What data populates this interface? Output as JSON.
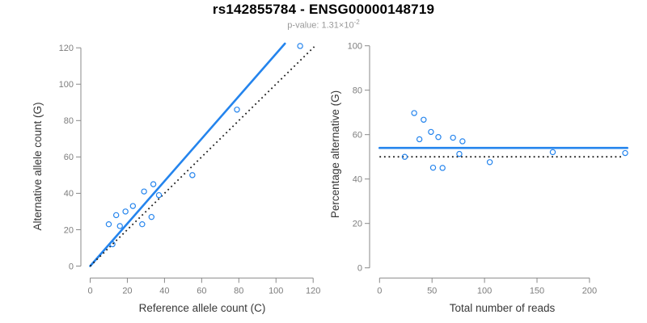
{
  "header": {
    "title": "rs142855784 - ENSG00000148719",
    "subtitle_prefix": "p-value: 1.31×10",
    "subtitle_exponent": "-2"
  },
  "colors": {
    "accent_blue": "#2484ed",
    "line_black": "#1b1b1b",
    "axis_gray": "#898989",
    "tick_label_gray": "#7d7d7d",
    "axis_title_color": "#383838",
    "subtitle_gray": "#999999",
    "title_black": "#000000"
  },
  "chart_data": [
    {
      "type": "scatter",
      "name": "allele-counts-scatter",
      "title": "",
      "xlabel": "Reference allele count (C)",
      "ylabel": "Alternative allele count (G)",
      "xlim": [
        0,
        126
      ],
      "ylim": [
        0,
        126
      ],
      "xticks": [
        0,
        20,
        40,
        60,
        80,
        100,
        120
      ],
      "yticks": [
        0,
        20,
        40,
        60,
        80,
        100,
        120
      ],
      "grid": false,
      "points": [
        [
          10,
          23
        ],
        [
          12,
          12
        ],
        [
          14,
          28
        ],
        [
          16,
          22
        ],
        [
          19,
          30
        ],
        [
          23,
          33
        ],
        [
          28,
          23
        ],
        [
          29,
          41
        ],
        [
          33,
          27
        ],
        [
          34,
          45
        ],
        [
          37,
          39
        ],
        [
          55,
          50
        ],
        [
          79,
          86
        ],
        [
          113,
          121
        ]
      ],
      "lines": [
        {
          "name": "fitted-proportion-line",
          "style": "solid",
          "color_key": "accent_blue",
          "from": [
            0,
            0
          ],
          "to": [
            104.8,
            122.3
          ]
        },
        {
          "name": "identity-line",
          "style": "dotted",
          "color_key": "line_black",
          "from": [
            0,
            0
          ],
          "to": [
            120.6,
            120.6
          ]
        }
      ]
    },
    {
      "type": "scatter",
      "name": "percentage-vs-reads-scatter",
      "title": "",
      "xlabel": "Total number of reads",
      "ylabel": "Percentage alternative (G)",
      "xlim": [
        0,
        236
      ],
      "ylim": [
        0,
        100
      ],
      "xticks": [
        0,
        50,
        100,
        150,
        200
      ],
      "yticks": [
        0,
        20,
        40,
        60,
        80,
        100
      ],
      "grid": false,
      "points": [
        [
          33,
          69.7
        ],
        [
          24,
          50
        ],
        [
          42,
          66.7
        ],
        [
          38,
          57.9
        ],
        [
          49,
          61.2
        ],
        [
          56,
          58.9
        ],
        [
          51,
          45.1
        ],
        [
          70,
          58.6
        ],
        [
          60,
          45
        ],
        [
          79,
          57
        ],
        [
          76,
          51.3
        ],
        [
          105,
          47.6
        ],
        [
          165,
          52.1
        ],
        [
          234,
          51.7
        ]
      ],
      "lines": [
        {
          "name": "mean-percentage-line",
          "style": "solid",
          "color_key": "accent_blue",
          "from": [
            0,
            54
          ],
          "to": [
            236,
            54
          ]
        },
        {
          "name": "fifty-percent-line",
          "style": "dotted",
          "color_key": "line_black",
          "from": [
            0,
            50
          ],
          "to": [
            232,
            50
          ]
        }
      ]
    }
  ]
}
